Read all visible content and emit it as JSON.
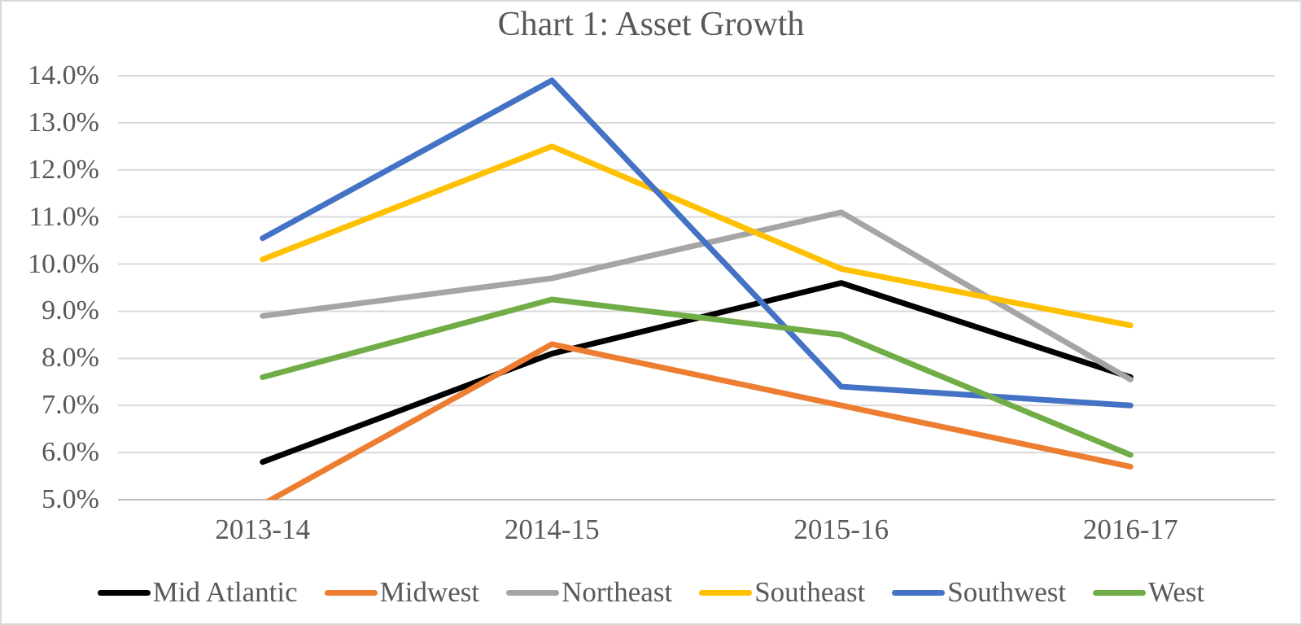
{
  "chart_data": {
    "type": "line",
    "title": "Chart 1: Asset Growth",
    "categories": [
      "2013-14",
      "2014-15",
      "2015-16",
      "2016-17"
    ],
    "series": [
      {
        "name": "Mid Atlantic",
        "color": "#000000",
        "values": [
          5.8,
          8.1,
          9.6,
          7.6
        ]
      },
      {
        "name": "Midwest",
        "color": "#ED7D31",
        "values": [
          4.9,
          8.3,
          7.0,
          5.7
        ]
      },
      {
        "name": "Northeast",
        "color": "#A5A5A5",
        "values": [
          8.9,
          9.7,
          11.1,
          7.55
        ]
      },
      {
        "name": "Southeast",
        "color": "#FFC000",
        "values": [
          10.1,
          12.5,
          9.9,
          8.7
        ]
      },
      {
        "name": "Southwest",
        "color": "#4472C4",
        "values": [
          10.55,
          13.9,
          7.4,
          7.0
        ]
      },
      {
        "name": "West",
        "color": "#70AD47",
        "values": [
          7.6,
          9.25,
          8.5,
          5.95
        ]
      }
    ],
    "ylim": [
      5.0,
      14.0
    ],
    "y_tick_step": 1.0,
    "y_tick_labels": [
      "14.0%",
      "13.0%",
      "12.0%",
      "11.0%",
      "10.0%",
      "9.0%",
      "8.0%",
      "7.0%",
      "6.0%",
      "5.0%"
    ],
    "xlabel": "",
    "ylabel": "",
    "grid": true,
    "legend_position": "bottom"
  },
  "colors": {
    "text": "#595959",
    "gridline": "#D9D9D9",
    "axis_line": "#BFBFBF",
    "frame_border": "#D9D9D9",
    "background": "#FFFFFF"
  }
}
